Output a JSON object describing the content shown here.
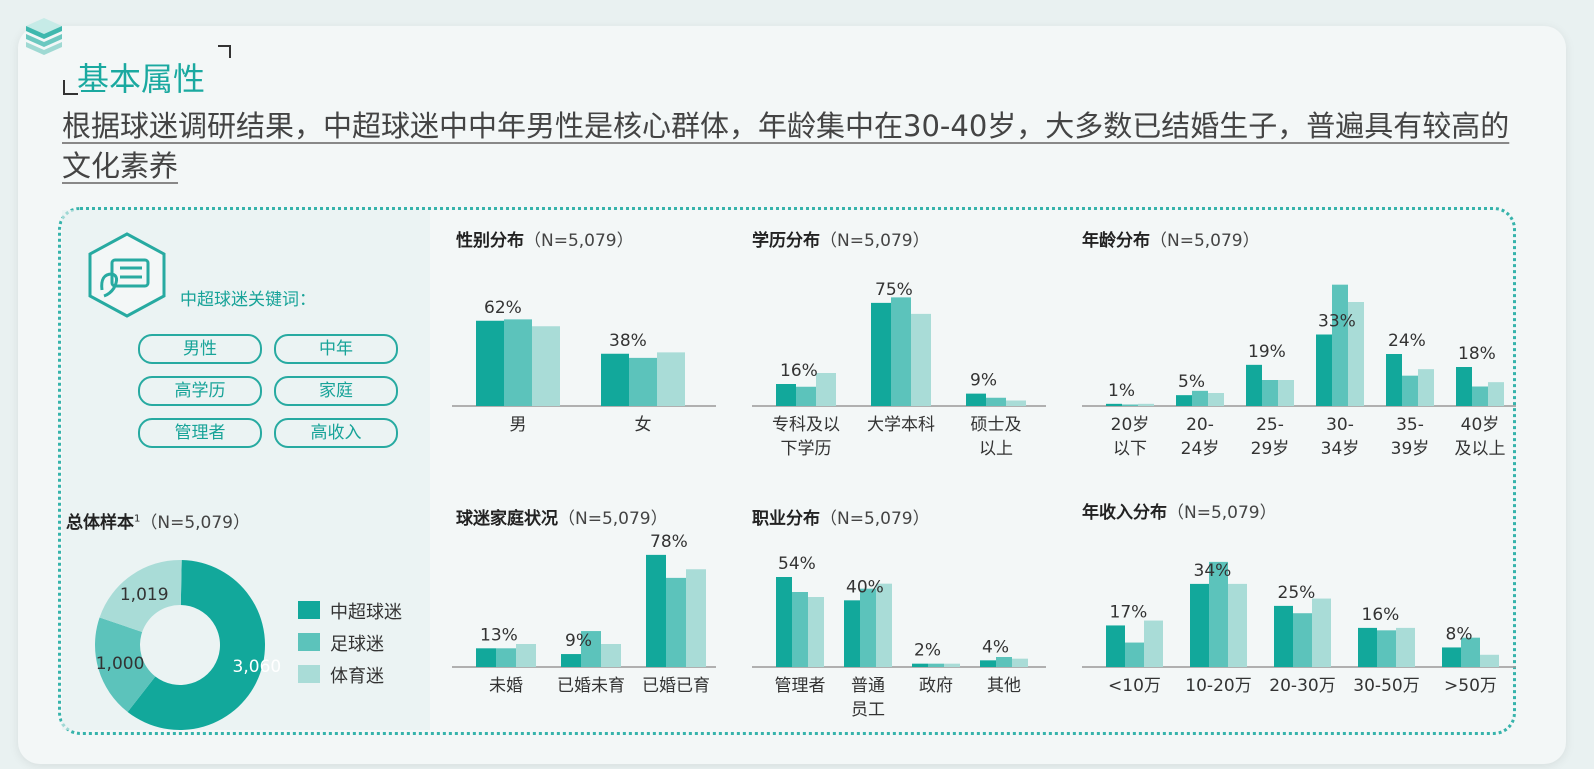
{
  "page_title": "基本属性",
  "subtitle": "根据球迷调研结果，中超球迷中中年男性是核心群体，年龄集中在30-40岁，大多数已结婚生子，普遍具有较高的文化素养",
  "colors": {
    "series1": "#12a89b",
    "series2": "#5cc3bb",
    "series3": "#a9dcd7",
    "accent": "#17a398"
  },
  "keywords": {
    "title": "中超球迷关键词：",
    "items": [
      "男性",
      "中年",
      "高学历",
      "家庭",
      "管理者",
      "高收入"
    ]
  },
  "legend": [
    "中超球迷",
    "足球迷",
    "体育迷"
  ],
  "chart_data": [
    {
      "id": "total",
      "type": "pie",
      "title": "总体样本",
      "title_sup": "1",
      "title_n": "（N=5,079）",
      "slices": [
        {
          "label": "中超球迷",
          "value": 3060,
          "display": "3,060"
        },
        {
          "label": "足球迷",
          "value": 1000,
          "display": "1,000"
        },
        {
          "label": "体育迷",
          "value": 1019,
          "display": "1,019"
        }
      ]
    },
    {
      "id": "gender",
      "type": "bar",
      "title": "性别分布",
      "title_n": "（N=5,079）",
      "categories": [
        [
          "男"
        ],
        [
          "女"
        ]
      ],
      "series": [
        {
          "name": "中超球迷",
          "values": [
            62,
            38
          ]
        },
        {
          "name": "足球迷",
          "values": [
            63,
            35
          ]
        },
        {
          "name": "体育迷",
          "values": [
            58,
            39
          ]
        }
      ],
      "value_labels": [
        "62%",
        "38%"
      ],
      "ylim": [
        0,
        80
      ]
    },
    {
      "id": "education",
      "type": "bar",
      "title": "学历分布",
      "title_n": "（N=5,079）",
      "categories": [
        [
          "专科及以",
          "下学历"
        ],
        [
          "大学本科"
        ],
        [
          "硕士及",
          "以上"
        ]
      ],
      "series": [
        {
          "name": "中超球迷",
          "values": [
            16,
            75,
            9
          ]
        },
        {
          "name": "足球迷",
          "values": [
            14,
            79,
            6
          ]
        },
        {
          "name": "体育迷",
          "values": [
            24,
            67,
            4
          ]
        }
      ],
      "value_labels": [
        "16%",
        "75%",
        "9%"
      ],
      "ylim": [
        0,
        80
      ]
    },
    {
      "id": "age",
      "type": "bar",
      "title": "年龄分布",
      "title_n": "（N=5,079）",
      "categories": [
        [
          "20岁",
          "以下"
        ],
        [
          "20-",
          "24岁"
        ],
        [
          "25-",
          "29岁"
        ],
        [
          "30-",
          "34岁"
        ],
        [
          "35-",
          "39岁"
        ],
        [
          "40岁",
          "及以上"
        ]
      ],
      "series": [
        {
          "name": "中超球迷",
          "values": [
            1,
            5,
            19,
            33,
            24,
            18
          ]
        },
        {
          "name": "足球迷",
          "values": [
            0.5,
            7,
            12,
            56,
            14,
            9
          ]
        },
        {
          "name": "体育迷",
          "values": [
            1,
            6,
            12,
            48,
            17,
            11
          ]
        }
      ],
      "value_labels": [
        "1%",
        "5%",
        "19%",
        "33%",
        "24%",
        "18%"
      ],
      "ylim": [
        0,
        60
      ]
    },
    {
      "id": "family",
      "type": "bar",
      "title": "球迷家庭状况",
      "title_n": "（N=5,079）",
      "categories": [
        [
          "未婚"
        ],
        [
          "已婚未育"
        ],
        [
          "已婚已育"
        ]
      ],
      "series": [
        {
          "name": "中超球迷",
          "values": [
            13,
            9,
            78
          ]
        },
        {
          "name": "足球迷",
          "values": [
            13,
            25,
            62
          ]
        },
        {
          "name": "体育迷",
          "values": [
            16,
            16,
            68
          ]
        }
      ],
      "value_labels": [
        "13%",
        "9%",
        "78%"
      ],
      "ylim": [
        0,
        80
      ]
    },
    {
      "id": "occupation",
      "type": "bar",
      "title": "职业分布",
      "title_n": "（N=5,079）",
      "categories": [
        [
          "管理者"
        ],
        [
          "普通",
          "员工"
        ],
        [
          "政府"
        ],
        [
          "其他"
        ]
      ],
      "series": [
        {
          "name": "中超球迷",
          "values": [
            54,
            40,
            2,
            4
          ]
        },
        {
          "name": "足球迷",
          "values": [
            45,
            47,
            2,
            6
          ]
        },
        {
          "name": "体育迷",
          "values": [
            42,
            50,
            2,
            5
          ]
        }
      ],
      "value_labels": [
        "54%",
        "40%",
        "2%",
        "4%"
      ],
      "ylim": [
        0,
        60
      ]
    },
    {
      "id": "income",
      "type": "bar",
      "title": "年收入分布",
      "title_n": "（N=5,079）",
      "categories": [
        [
          "<10万"
        ],
        [
          "10-20万"
        ],
        [
          "20-30万"
        ],
        [
          "30-50万"
        ],
        [
          ">50万"
        ]
      ],
      "series": [
        {
          "name": "中超球迷",
          "values": [
            17,
            34,
            25,
            16,
            8
          ]
        },
        {
          "name": "足球迷",
          "values": [
            10,
            43,
            22,
            15,
            12
          ]
        },
        {
          "name": "体育迷",
          "values": [
            19,
            34,
            28,
            16,
            5
          ]
        }
      ],
      "value_labels": [
        "17%",
        "34%",
        "25%",
        "16%",
        "8%"
      ],
      "ylim": [
        0,
        45
      ]
    }
  ]
}
